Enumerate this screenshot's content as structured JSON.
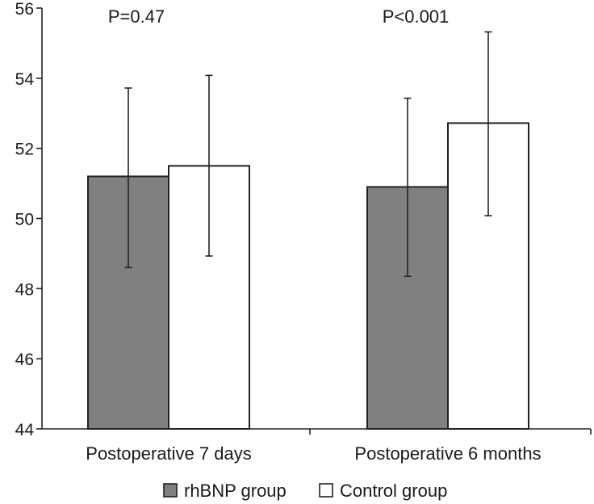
{
  "chart_data": {
    "type": "bar",
    "title": "",
    "xlabel": "",
    "ylabel": "",
    "ylim": [
      44,
      56
    ],
    "yticks": [
      44,
      46,
      48,
      50,
      52,
      54,
      56
    ],
    "categories": [
      "Postoperative 7 days",
      "Postoperative 6 months"
    ],
    "series": [
      {
        "name": "rhBNP group",
        "values": [
          51.2,
          50.9
        ],
        "error_low": [
          48.6,
          48.35
        ],
        "error_high": [
          53.72,
          53.43
        ],
        "color": "#7f8180"
      },
      {
        "name": "Control group",
        "values": [
          51.5,
          52.72
        ],
        "error_low": [
          48.93,
          50.08
        ],
        "error_high": [
          54.08,
          55.32
        ],
        "color": "#ffffff"
      }
    ],
    "annotations": [
      "P=0.47",
      "P<0.001"
    ],
    "legend": {
      "position": "bottom",
      "items": [
        "rhBNP group",
        "Control group"
      ]
    },
    "grid": false
  }
}
